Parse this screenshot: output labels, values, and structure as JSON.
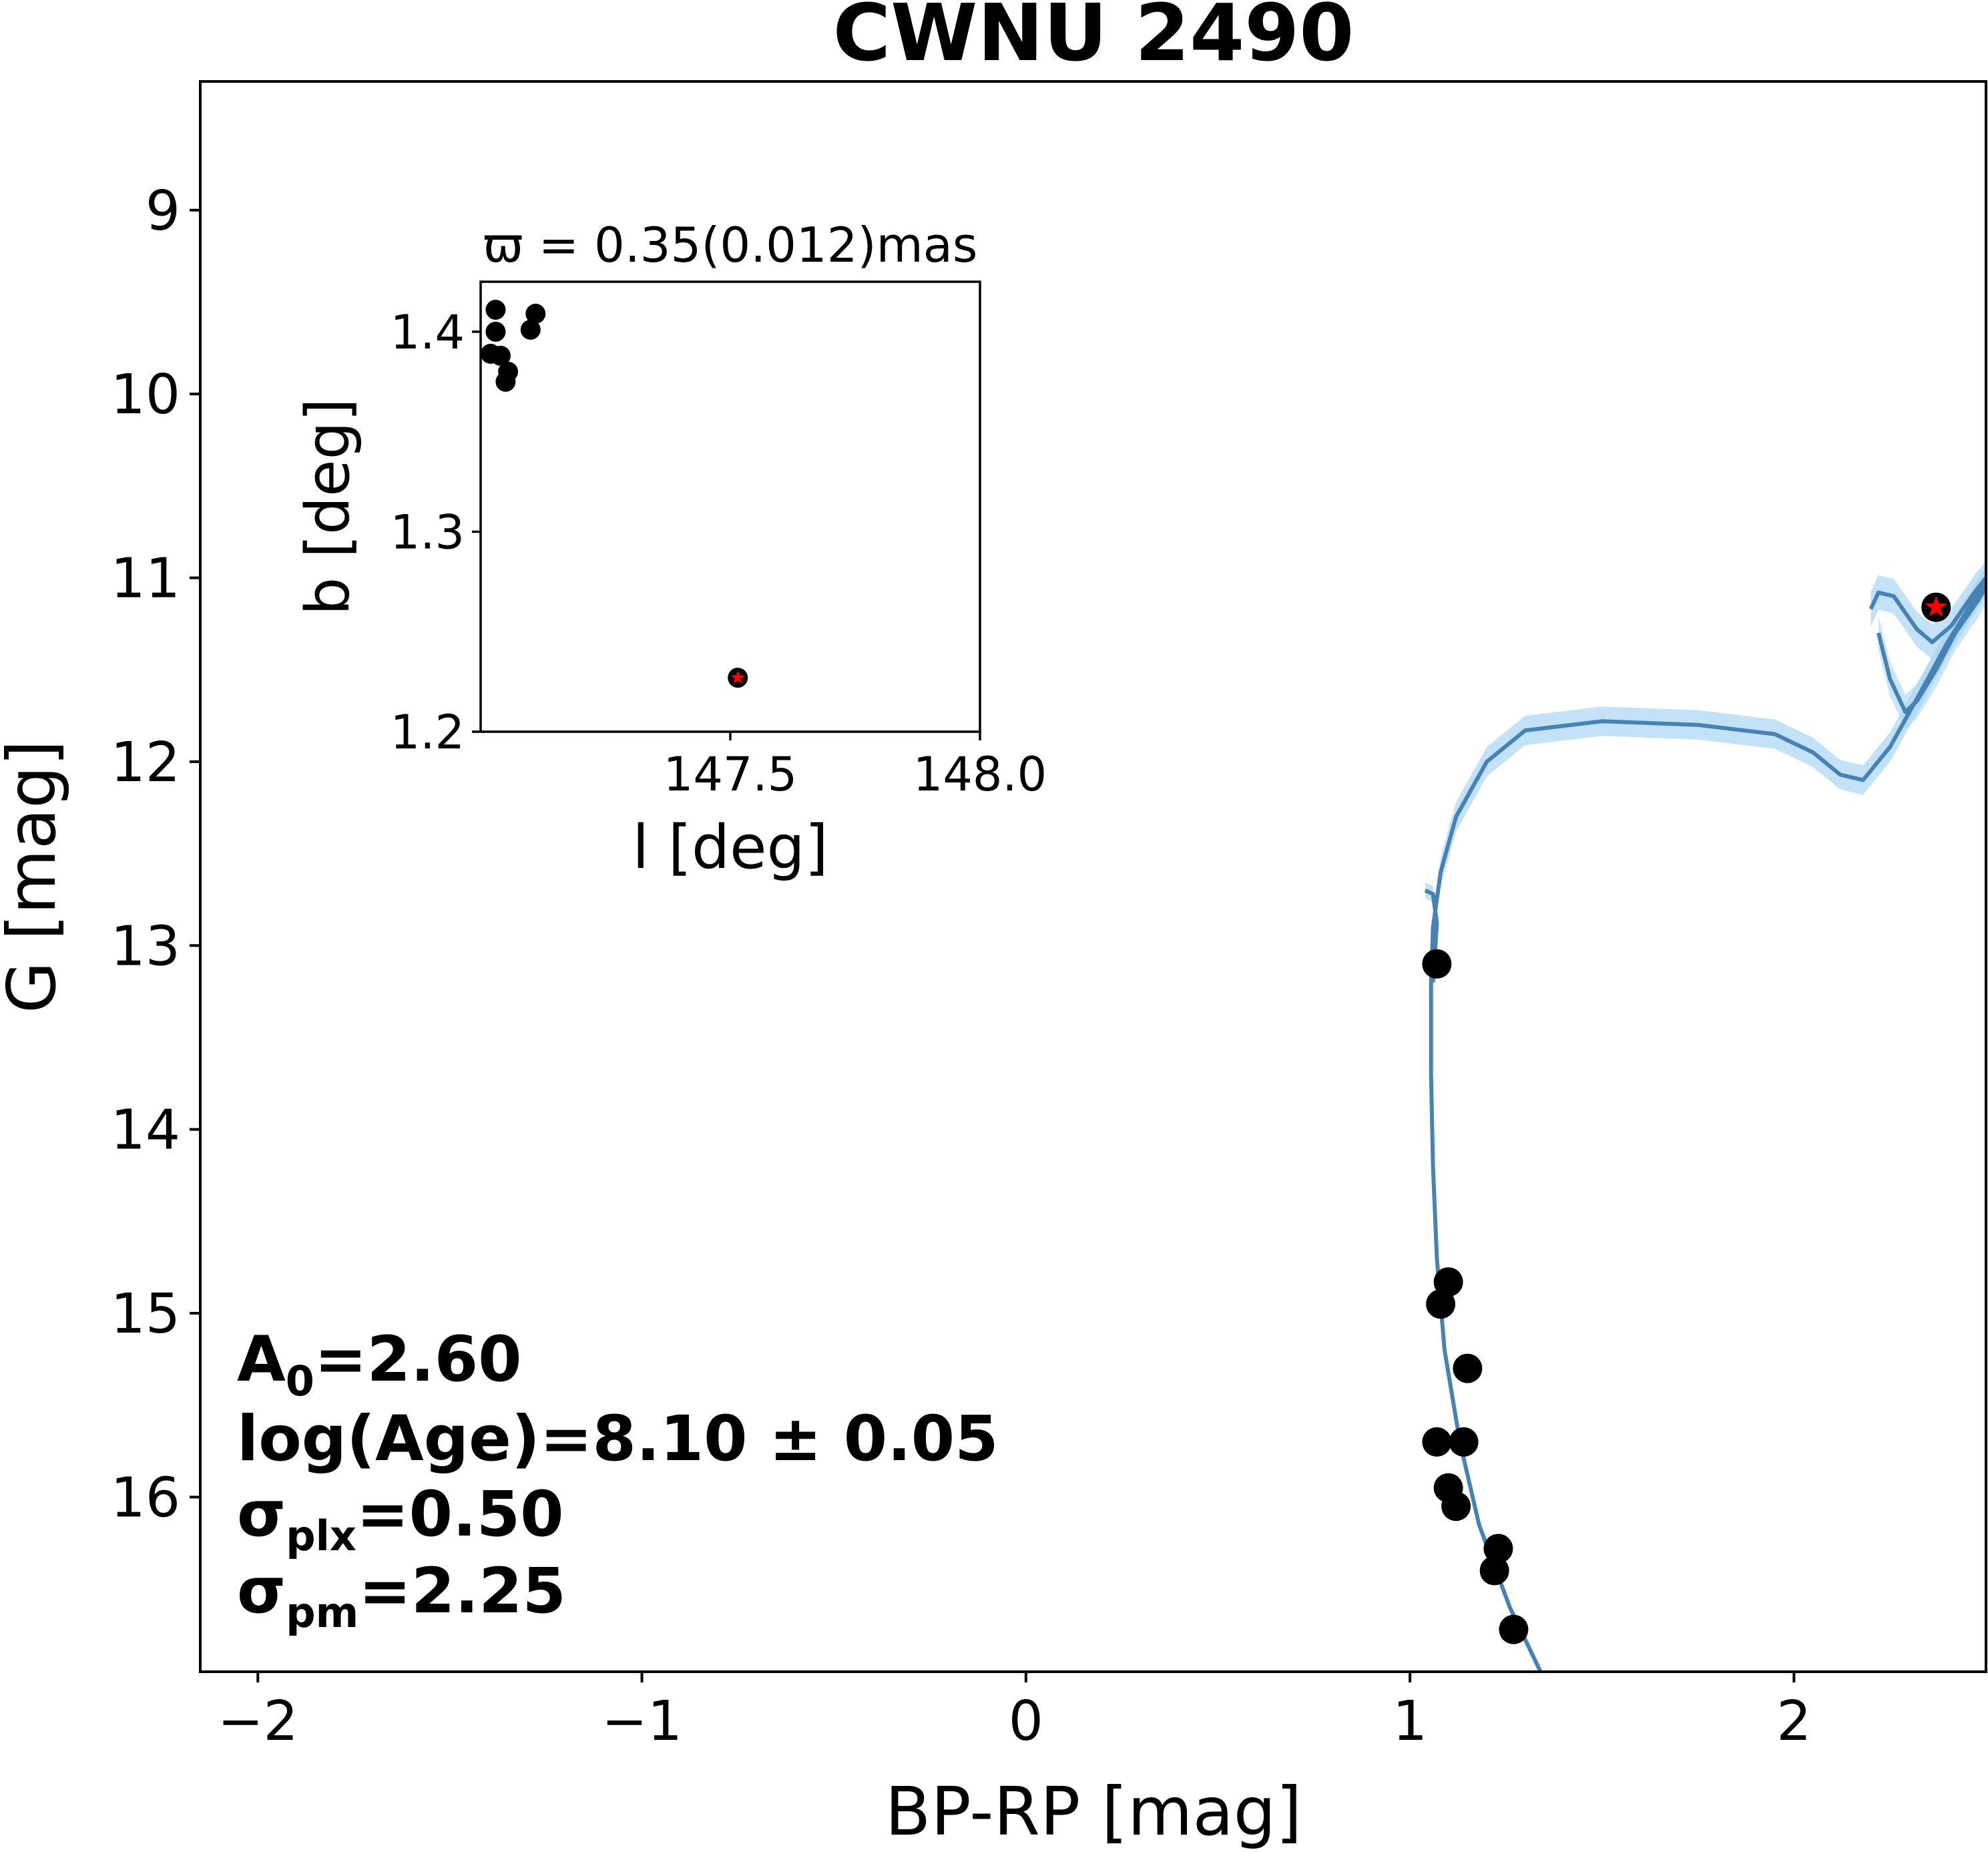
{
  "chart_data": [
    {
      "type": "scatter",
      "title": "CWNU 2490",
      "xlabel": "BP-RP [mag]",
      "ylabel": "G [mag]",
      "xlim": [
        -2.15,
        2.5
      ],
      "ylim": [
        16.95,
        8.3
      ],
      "y_inverted": true,
      "xticks": [
        -2,
        -1,
        0,
        1,
        2
      ],
      "xtick_labels": [
        "−2",
        "−1",
        "0",
        "1",
        "2"
      ],
      "yticks": [
        9,
        10,
        11,
        12,
        13,
        14,
        15,
        16
      ],
      "ytick_labels": [
        "9",
        "10",
        "11",
        "12",
        "13",
        "14",
        "15",
        "16"
      ],
      "colors": {
        "members": "#000000",
        "isochrone": "#4682b4",
        "band": "#a9d6f5",
        "highlight_star": "#ff0000"
      },
      "members": [
        {
          "x": 1.07,
          "y": 13.1
        },
        {
          "x": 1.1,
          "y": 14.83
        },
        {
          "x": 1.08,
          "y": 14.95
        },
        {
          "x": 1.15,
          "y": 15.3
        },
        {
          "x": 1.07,
          "y": 15.7
        },
        {
          "x": 1.14,
          "y": 15.7
        },
        {
          "x": 1.1,
          "y": 15.95
        },
        {
          "x": 1.12,
          "y": 16.05
        },
        {
          "x": 1.23,
          "y": 16.28
        },
        {
          "x": 1.22,
          "y": 16.4
        },
        {
          "x": 1.27,
          "y": 16.72
        }
      ],
      "highlight": {
        "x": 2.37,
        "y": 11.16,
        "marker": "red-star"
      },
      "isochrone": [
        {
          "x": 1.34,
          "y": 16.95
        },
        {
          "x": 1.26,
          "y": 16.6
        },
        {
          "x": 1.18,
          "y": 16.15
        },
        {
          "x": 1.13,
          "y": 15.7
        },
        {
          "x": 1.09,
          "y": 15.2
        },
        {
          "x": 1.07,
          "y": 14.7
        },
        {
          "x": 1.06,
          "y": 14.2
        },
        {
          "x": 1.055,
          "y": 13.7
        },
        {
          "x": 1.055,
          "y": 13.2
        },
        {
          "x": 1.06,
          "y": 12.9
        },
        {
          "x": 1.08,
          "y": 12.6
        },
        {
          "x": 1.12,
          "y": 12.3
        },
        {
          "x": 1.2,
          "y": 12.0
        },
        {
          "x": 1.3,
          "y": 11.83
        },
        {
          "x": 1.5,
          "y": 11.78
        },
        {
          "x": 1.75,
          "y": 11.8
        },
        {
          "x": 1.95,
          "y": 11.85
        },
        {
          "x": 2.05,
          "y": 11.95
        },
        {
          "x": 2.12,
          "y": 12.07
        },
        {
          "x": 2.18,
          "y": 12.1
        },
        {
          "x": 2.25,
          "y": 11.92
        },
        {
          "x": 2.33,
          "y": 11.62
        },
        {
          "x": 2.4,
          "y": 11.35
        },
        {
          "x": 2.48,
          "y": 11.08
        },
        {
          "x": 2.5,
          "y": 11.02
        }
      ],
      "isochrone_upper_branch": [
        {
          "x": 2.2,
          "y": 11.17
        },
        {
          "x": 2.22,
          "y": 11.08
        },
        {
          "x": 2.26,
          "y": 11.1
        },
        {
          "x": 2.32,
          "y": 11.28
        },
        {
          "x": 2.36,
          "y": 11.35
        },
        {
          "x": 2.41,
          "y": 11.26
        },
        {
          "x": 2.47,
          "y": 11.08
        },
        {
          "x": 2.5,
          "y": 11.0
        }
      ],
      "isochrone_lower_branch": [
        {
          "x": 2.22,
          "y": 11.3
        },
        {
          "x": 2.25,
          "y": 11.55
        },
        {
          "x": 2.29,
          "y": 11.73
        },
        {
          "x": 2.32,
          "y": 11.67
        },
        {
          "x": 2.37,
          "y": 11.5
        },
        {
          "x": 2.42,
          "y": 11.3
        },
        {
          "x": 2.48,
          "y": 11.12
        },
        {
          "x": 2.5,
          "y": 11.05
        }
      ],
      "isochrone_start": [
        {
          "x": 1.06,
          "y": 13.2
        },
        {
          "x": 1.07,
          "y": 12.88
        },
        {
          "x": 1.06,
          "y": 12.72
        },
        {
          "x": 1.04,
          "y": 12.7
        }
      ],
      "annotations": [
        {
          "main": "A",
          "sub": "0",
          "rest": "=2.60"
        },
        {
          "main": "log(Age)=8.10 ± 0.05",
          "sub": "",
          "rest": ""
        },
        {
          "main": "σ",
          "sub": "plx",
          "rest": "=0.50"
        },
        {
          "main": "σ",
          "sub": "pm",
          "rest": "=2.25"
        }
      ]
    },
    {
      "type": "scatter",
      "title": "ϖ = 0.35(0.012)mas",
      "xlabel": "l [deg]",
      "ylabel": "b [deg]",
      "xlim": [
        147.0,
        148.0
      ],
      "ylim": [
        1.2,
        1.425
      ],
      "xticks": [
        147.5,
        148.0
      ],
      "xtick_labels": [
        "147.5",
        "148.0"
      ],
      "yticks": [
        1.2,
        1.3,
        1.4
      ],
      "ytick_labels": [
        "1.2",
        "1.3",
        "1.4"
      ],
      "members": [
        {
          "x": 147.03,
          "y": 1.411
        },
        {
          "x": 147.03,
          "y": 1.4
        },
        {
          "x": 147.02,
          "y": 1.389
        },
        {
          "x": 147.04,
          "y": 1.388
        },
        {
          "x": 147.055,
          "y": 1.38
        },
        {
          "x": 147.05,
          "y": 1.375
        },
        {
          "x": 147.1,
          "y": 1.401
        },
        {
          "x": 147.11,
          "y": 1.409
        }
      ],
      "highlight": {
        "x": 147.515,
        "y": 1.227,
        "marker": "red-star"
      }
    }
  ]
}
